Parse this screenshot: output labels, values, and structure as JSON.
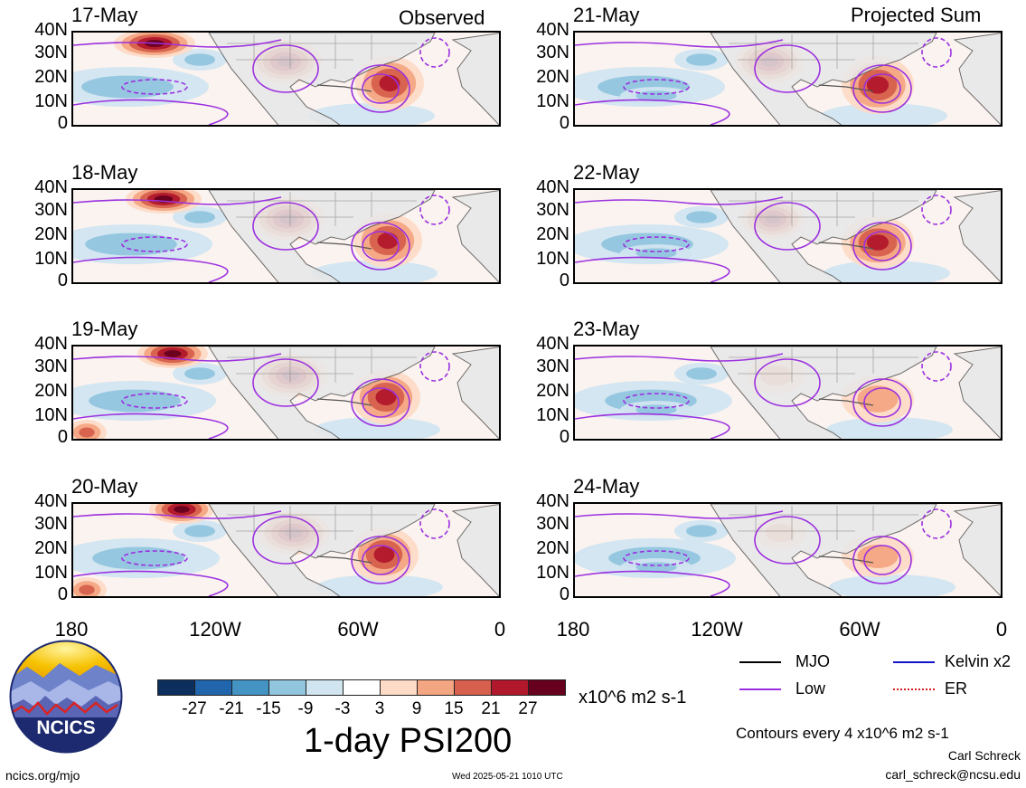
{
  "headers": {
    "left": "Observed",
    "right": "Projected Sum"
  },
  "panels_left": [
    {
      "date": "17-May"
    },
    {
      "date": "18-May"
    },
    {
      "date": "19-May"
    },
    {
      "date": "20-May"
    }
  ],
  "panels_right": [
    {
      "date": "21-May"
    },
    {
      "date": "22-May"
    },
    {
      "date": "23-May"
    },
    {
      "date": "24-May"
    }
  ],
  "lat_labels": [
    "40N",
    "30N",
    "20N",
    "10N",
    "0"
  ],
  "lon_labels": [
    "180",
    "120W",
    "60W",
    "0"
  ],
  "colorbar": {
    "colors": [
      "#0d2f5e",
      "#2166ac",
      "#4393c3",
      "#92c5de",
      "#d1e5f0",
      "#ffffff",
      "#fddbc7",
      "#f4a582",
      "#d6604d",
      "#b2182b",
      "#67001f"
    ],
    "labels": [
      "-27",
      "-21",
      "-15",
      "-9",
      "-3",
      "3",
      "9",
      "15",
      "21",
      "27"
    ],
    "units": "x10^6 m2 s-1"
  },
  "title": "1-day PSI200",
  "legend": [
    {
      "label": "MJO",
      "color": "#000000"
    },
    {
      "label": "Kelvin x2",
      "color": "#1515c8"
    },
    {
      "label": "Low",
      "color": "#9b30e0"
    },
    {
      "label": "ER",
      "color": "#d42020"
    }
  ],
  "contour_note": "Contours every 4 x10^6 m2 s-1",
  "author": "Carl Schreck",
  "email": "carl_schreck@ncsu.edu",
  "website": "ncics.org/mjo",
  "timestamp": "Wed 2025-05-21 1010 UTC",
  "logo_text": "NCICS"
}
